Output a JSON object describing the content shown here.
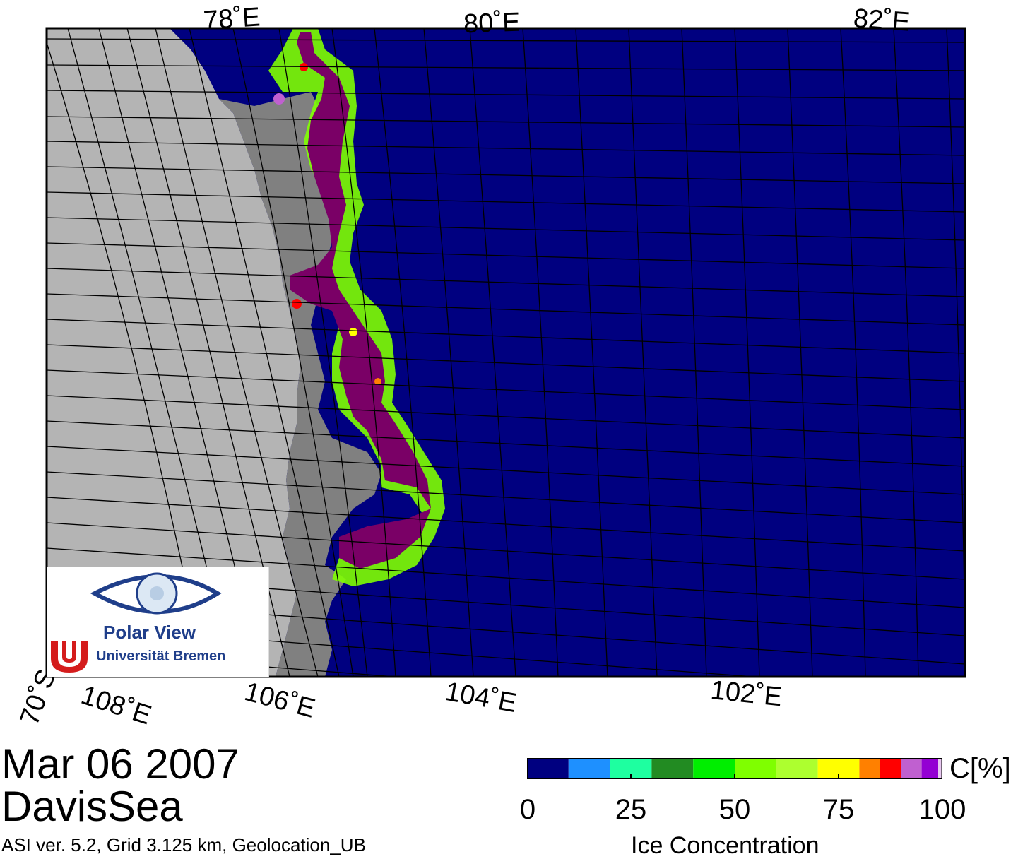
{
  "map": {
    "lon_labels_top": [
      "78˚E",
      "80˚E",
      "82˚E"
    ],
    "lon_labels_bottom": [
      "108˚E",
      "106˚E",
      "104˚E",
      "102˚E"
    ],
    "lat_label": "70˚S",
    "colors": {
      "ocean": "#000080",
      "land": "#b4b4b4",
      "ice_shelf": "#808080",
      "high_ice": "#7a0066",
      "graticule": "#000000"
    }
  },
  "logo": {
    "title": "Polar View",
    "subtitle": "Universität Bremen"
  },
  "caption": {
    "date": "Mar 06 2007",
    "region": "DavisSea",
    "footer": "ASI ver. 5.2,  Grid 3.125 km, Geolocation_UB"
  },
  "colorbar": {
    "unit": "C[%]",
    "label": "Ice Concentration",
    "ticks": [
      "0",
      "25",
      "50",
      "75",
      "100"
    ],
    "range": [
      0,
      100
    ],
    "colors": [
      "#000080",
      "#1e90ff",
      "#1effa0",
      "#228b22",
      "#00ee00",
      "#7fff00",
      "#adff2f",
      "#ffff00",
      "#ff8000",
      "#ff0000",
      "#c060d0",
      "#9400d3",
      "#e8c8f0"
    ]
  }
}
